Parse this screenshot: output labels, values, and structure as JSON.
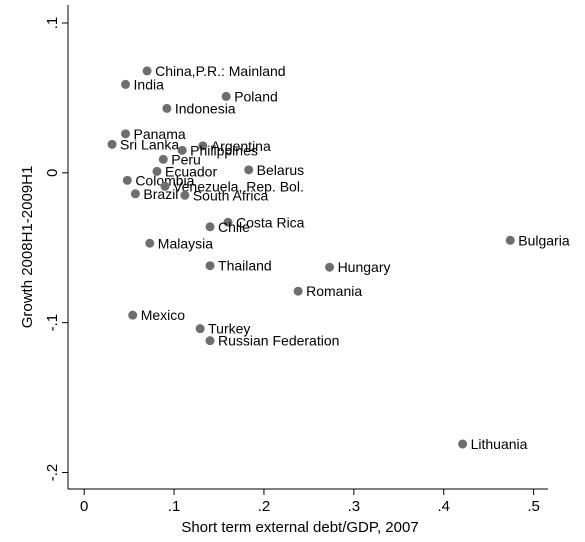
{
  "chart_data": {
    "type": "scatter",
    "x_label": "Short term external debt/GDP, 2007",
    "y_label": "Growth 2008H1-2009H1",
    "labels": [
      "China,P.R.: Mainland",
      "India",
      "Poland",
      "Indonesia",
      "Panama",
      "Sri Lanka",
      "Argentina",
      "Philippines",
      "Peru",
      "Ecuador",
      "Belarus",
      "Colombia",
      "Venezuela, Rep. Bol.",
      "Brazil",
      "South Africa",
      "Costa Rica",
      "Chile",
      "Bulgaria",
      "Malaysia",
      "Thailand",
      "Hungary",
      "Romania",
      "Mexico",
      "Turkey",
      "Russian Federation",
      "Lithuania"
    ],
    "x": [
      0.07,
      0.046,
      0.158,
      0.092,
      0.046,
      0.031,
      0.132,
      0.109,
      0.088,
      0.081,
      0.183,
      0.048,
      0.09,
      0.057,
      0.112,
      0.16,
      0.14,
      0.474,
      0.073,
      0.14,
      0.273,
      0.238,
      0.054,
      0.129,
      0.14,
      0.421
    ],
    "y": [
      0.068,
      0.059,
      0.051,
      0.043,
      0.026,
      0.019,
      0.018,
      0.015,
      0.009,
      0.001,
      0.002,
      -0.005,
      -0.009,
      -0.014,
      -0.015,
      -0.033,
      -0.036,
      -0.045,
      -0.047,
      -0.062,
      -0.063,
      -0.079,
      -0.095,
      -0.104,
      -0.112,
      -0.181
    ],
    "color": "#6e6e6e",
    "xlim": [
      -0.018,
      0.516
    ],
    "ylim": [
      -0.211,
      0.112
    ],
    "xticks": [
      0,
      {
        "value": 0.1,
        "label": ".1"
      },
      {
        "value": 0.2,
        "label": ".2"
      },
      {
        "value": 0.3,
        "label": ".3"
      },
      {
        "value": 0.4,
        "label": ".4"
      },
      {
        "value": 0.5,
        "label": ".5"
      }
    ],
    "yticks": [
      {
        "value": 0.1,
        "label": ".1"
      },
      0,
      {
        "value": -0.1,
        "label": "-.1"
      },
      {
        "value": -0.2,
        "label": "-.2"
      }
    ]
  }
}
